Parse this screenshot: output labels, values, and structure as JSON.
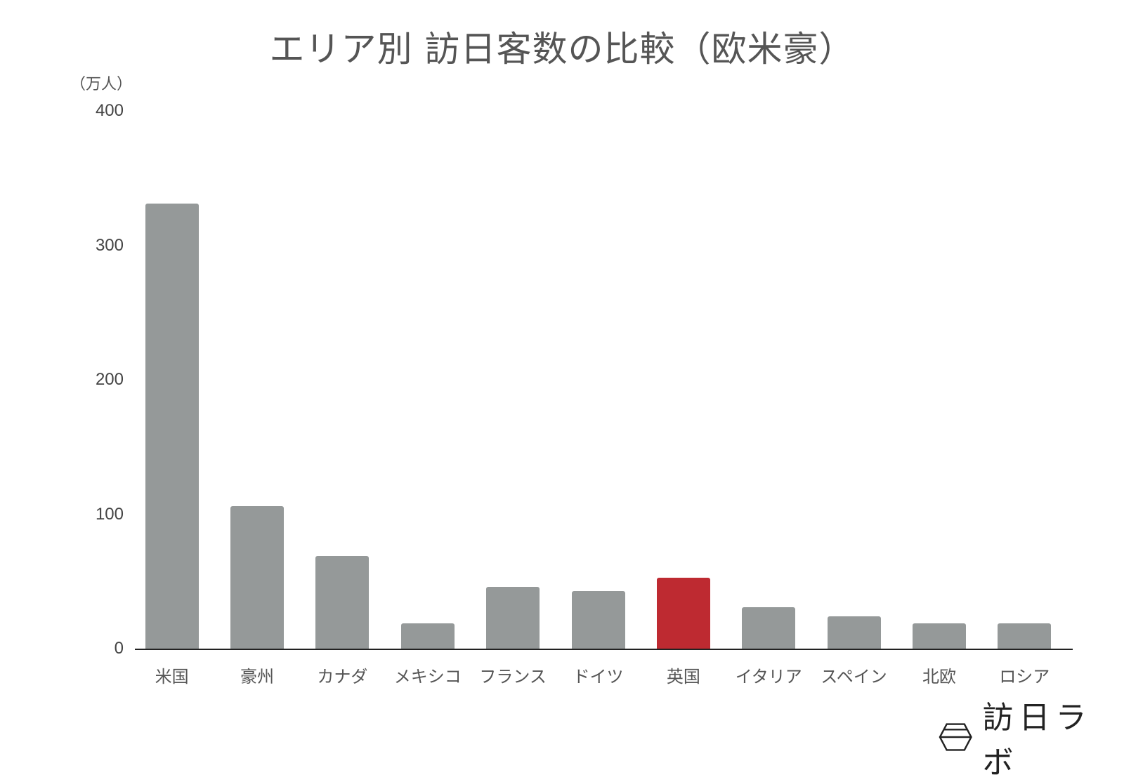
{
  "chart_data": {
    "type": "bar",
    "title": "エリア別 訪日客数の比較（欧米豪）",
    "xlabel": "",
    "ylabel": "（万人）",
    "ylim": [
      0,
      400
    ],
    "yticks": [
      0,
      100,
      200,
      300,
      400
    ],
    "grid": false,
    "legend": null,
    "categories": [
      "米国",
      "豪州",
      "カナダ",
      "メキシコ",
      "フランス",
      "ドイツ",
      "英国",
      "イタリア",
      "スペイン",
      "北欧",
      "ロシア"
    ],
    "values": [
      331,
      106,
      69,
      19,
      46,
      43,
      53,
      31,
      24,
      19,
      19
    ],
    "highlight": "英国",
    "colors": {
      "default": "#959999",
      "highlight": "#be2a31"
    }
  },
  "header": {
    "title": "エリア別 訪日客数の比較（欧米豪）",
    "unit": "（万人）"
  },
  "axis": {
    "ticks": [
      "0",
      "100",
      "200",
      "300",
      "400"
    ]
  },
  "labels": [
    "米国",
    "豪州",
    "カナダ",
    "メキシコ",
    "フランス",
    "ドイツ",
    "英国",
    "イタリア",
    "スペイン",
    "北欧",
    "ロシア"
  ],
  "footer": {
    "brand": "訪日ラボ",
    "logo_icon": "hexagon-logo-icon"
  }
}
